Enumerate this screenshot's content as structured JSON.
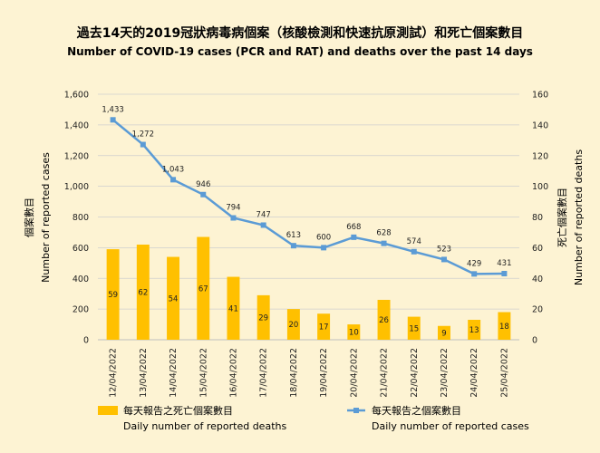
{
  "title_zh": "過去14天的2019冠狀病毒病個案（核酸檢測和快速抗原測試）和死亡個案數目",
  "title_en": "Number of COVID-19 cases (PCR and RAT) and deaths over the past 14 days",
  "colors": {
    "bar": "#ffc000",
    "line": "#5b9bd5",
    "background": "#fdf3d3",
    "grid": "#cfcfcf"
  },
  "chart_data": {
    "type": "bar",
    "categories": [
      "12/04/2022",
      "13/04/2022",
      "14/04/2022",
      "15/04/2022",
      "16/04/2022",
      "17/04/2022",
      "18/04/2022",
      "19/04/2022",
      "20/04/2022",
      "21/04/2022",
      "22/04/2022",
      "23/04/2022",
      "24/04/2022",
      "25/04/2022"
    ],
    "series": [
      {
        "name_zh": "每天報告之死亡個案數目",
        "name": "Daily number of reported deaths",
        "type": "bar",
        "axis": "right",
        "values": [
          59,
          62,
          54,
          67,
          41,
          29,
          20,
          17,
          10,
          26,
          15,
          9,
          13,
          18
        ]
      },
      {
        "name_zh": "每天報告之個案數目",
        "name": "Daily number of reported cases",
        "type": "line",
        "axis": "left",
        "values": [
          1433,
          1272,
          1043,
          946,
          794,
          747,
          613,
          600,
          668,
          628,
          574,
          523,
          429,
          431
        ]
      }
    ],
    "y_left": {
      "label_zh": "個案數目",
      "label_en": "Number of reported cases",
      "ylim": [
        0,
        1600
      ],
      "ticks": [
        "0",
        "200",
        "400",
        "600",
        "800",
        "1,000",
        "1,200",
        "1,400",
        "1,600"
      ]
    },
    "y_right": {
      "label_zh": "死亡個案數目",
      "label_en": "Number of reported deaths",
      "ylim": [
        0,
        160
      ],
      "ticks": [
        "0",
        "20",
        "40",
        "60",
        "80",
        "100",
        "120",
        "140",
        "160"
      ]
    },
    "grid": true,
    "legend": "bottom"
  }
}
